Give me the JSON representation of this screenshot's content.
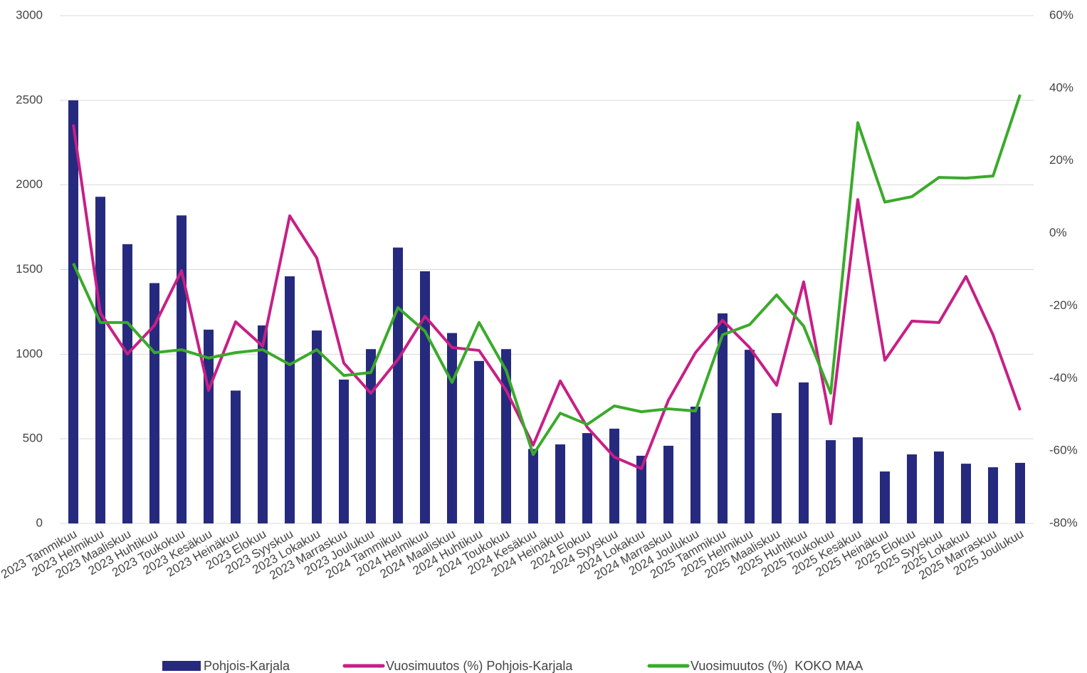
{
  "chart_data": {
    "type": "bar-line",
    "categories": [
      "2023 Tammikuu",
      "2023 Helmikuu",
      "2023 Maaliskuu",
      "2023 Huhtikuu",
      "2023 Toukokuu",
      "2023 Kesäkuu",
      "2023 Heinäkuu",
      "2023 Elokuu",
      "2023 Syyskuu",
      "2023 Lokakuu",
      "2023 Marraskuu",
      "2023 Joulukuu",
      "2024 Tammikuu",
      "2024 Helmikuu",
      "2024 Maaliskuu",
      "2024 Huhtikuu",
      "2024 Toukokuu",
      "2024 Kesäkuu",
      "2024 Heinäkuu",
      "2024 Elokuu",
      "2024 Syyskuu",
      "2024 Lokakuu",
      "2024 Marraskuu",
      "2024 Joulukuu",
      "2025 Tammikuu",
      "2025 Helmikuu",
      "2025 Maaliskuu",
      "2025 Huhtikuu",
      "2025 Toukokuu",
      "2025 Kesäkuu",
      "2025 Heinäkuu",
      "2025 Elokuu",
      "2025 Syyskuu",
      "2025 Lokakuu",
      "2025 Marraskuu",
      "2025 Joulukuu"
    ],
    "series": [
      {
        "name": "Pohjois-Karjala",
        "type": "bar",
        "color": "#262a7e",
        "values": [
          2500,
          1930,
          1650,
          1420,
          1820,
          1145,
          785,
          1170,
          1460,
          1140,
          850,
          1030,
          1630,
          1490,
          1125,
          960,
          1030,
          440,
          467,
          534,
          560,
          400,
          459,
          690,
          1241,
          1026,
          652,
          833,
          492,
          509,
          307,
          408,
          425,
          353,
          332,
          358
        ]
      },
      {
        "name": "Vuosimuutos (%) Pohjois-Karjala",
        "type": "line",
        "axis": "y2",
        "color": "#c71f86",
        "values": [
          30,
          -22,
          -33.3,
          -25.4,
          -10.3,
          -43.3,
          -24.4,
          -31.1,
          4.8,
          -6.8,
          -35.8,
          -44.1,
          -34.8,
          -22.9,
          -31.5,
          -32.3,
          -43.3,
          -58.4,
          -40.7,
          -53.5,
          -61.7,
          -64.9,
          -46,
          -32.9,
          -24,
          -31.5,
          -41.9,
          -13.4,
          -52.5,
          9.3,
          -35,
          -24.2,
          -24.6,
          -11.9,
          -28,
          -48.8
        ]
      },
      {
        "name": "Vuosimuutos (%)  KOKO MAA",
        "type": "line",
        "axis": "y2",
        "color": "#3aaa2a",
        "values": [
          -8.3,
          -24.6,
          -24.6,
          -32.9,
          -32.1,
          -34.4,
          -32.9,
          -32.1,
          -36.2,
          -32.1,
          -39.2,
          -38.4,
          -20.5,
          -27,
          -41.1,
          -24.6,
          -37.8,
          -61,
          -49.6,
          -52.7,
          -47.6,
          -49.2,
          -48.4,
          -49,
          -28,
          -25.2,
          -17,
          -25.6,
          -44.1,
          30.5,
          8.6,
          10.1,
          15.4,
          15.2,
          15.8,
          38.2
        ]
      }
    ],
    "ylim": [
      0,
      3000
    ],
    "yticks": [
      0,
      500,
      1000,
      1500,
      2000,
      2500,
      3000
    ],
    "y2lim": [
      -80,
      60
    ],
    "y2ticks": [
      {
        "value": -80,
        "label": "-80%"
      },
      {
        "value": -60,
        "label": "-60%"
      },
      {
        "value": -40,
        "label": "-40%"
      },
      {
        "value": -20,
        "label": "-20%"
      },
      {
        "value": 0,
        "label": "0%"
      },
      {
        "value": 20,
        "label": "20%"
      },
      {
        "value": 40,
        "label": "40%"
      },
      {
        "value": 60,
        "label": "60%"
      }
    ],
    "grid": true,
    "legend": "bottom"
  }
}
